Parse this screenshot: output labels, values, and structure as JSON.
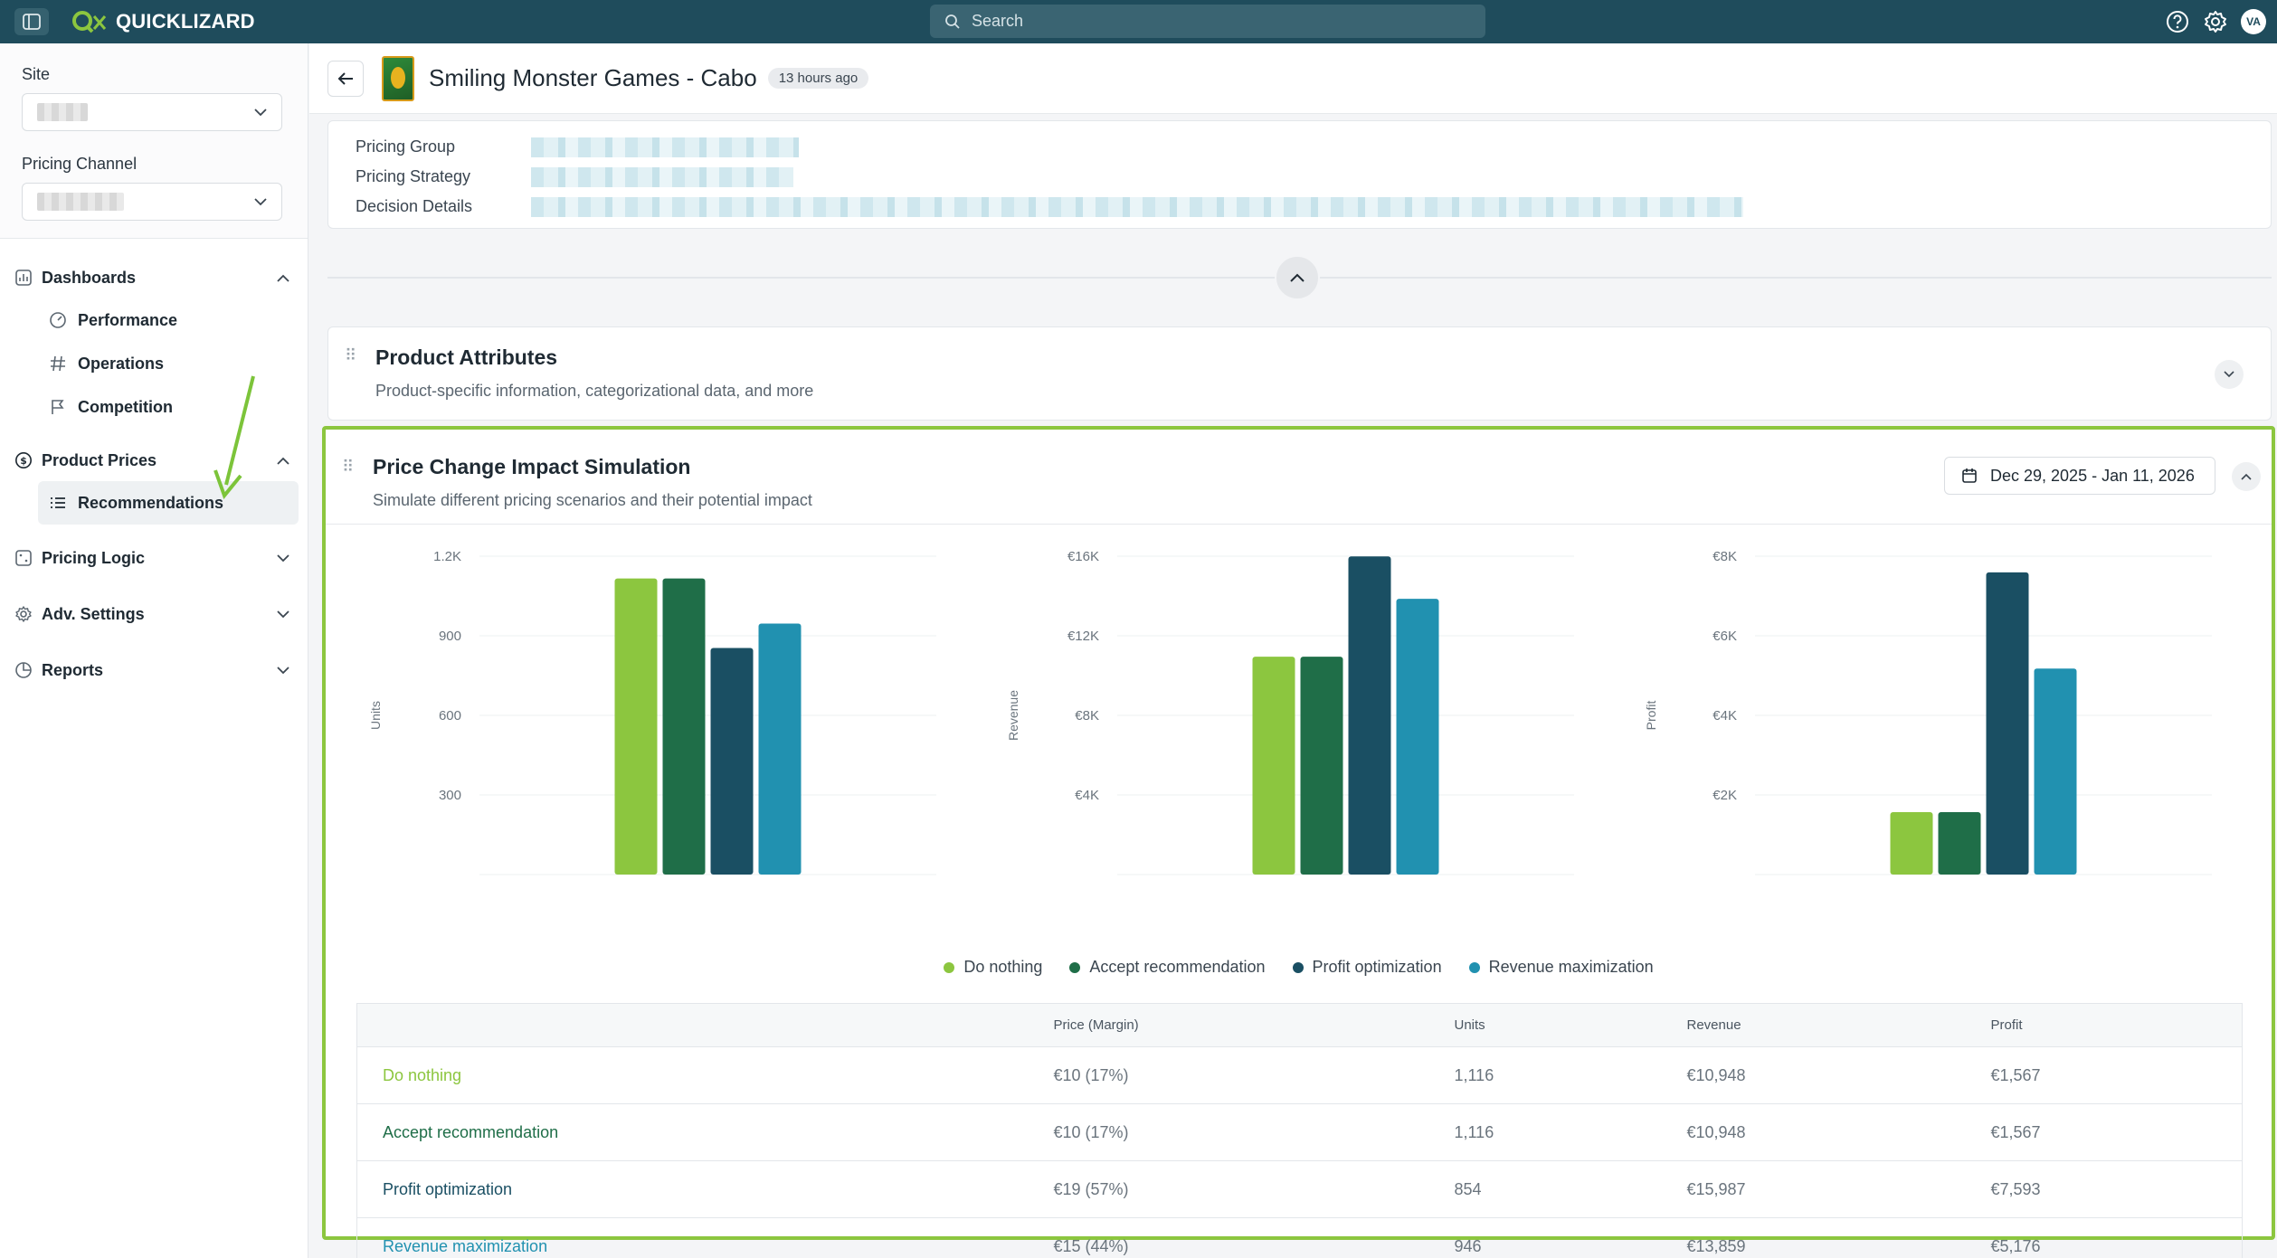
{
  "app": {
    "name": "QUICKLIZARD",
    "user_initials": "VA"
  },
  "colors": {
    "do_nothing": "#8cc63f",
    "accept": "#1f6e48",
    "profit": "#1a4f63",
    "revenue": "#2191b0",
    "highlight": "#8cc63f"
  },
  "search": {
    "placeholder": "Search"
  },
  "sidebar": {
    "site_label": "Site",
    "channel_label": "Pricing Channel",
    "groups": [
      {
        "label": "Dashboards",
        "icon": "chart-icon",
        "expanded": true,
        "items": [
          "Performance",
          "Operations",
          "Competition"
        ]
      },
      {
        "label": "Product Prices",
        "icon": "dollar-icon",
        "expanded": true,
        "items": [
          "Recommendations"
        ]
      },
      {
        "label": "Pricing Logic",
        "icon": "dice-icon",
        "expanded": false,
        "items": []
      },
      {
        "label": "Adv. Settings",
        "icon": "gear-icon",
        "expanded": false,
        "items": []
      },
      {
        "label": "Reports",
        "icon": "pie-icon",
        "expanded": false,
        "items": []
      }
    ]
  },
  "header": {
    "title": "Smiling Monster Games - Cabo",
    "updated": "13 hours ago"
  },
  "details": {
    "pricing_group_label": "Pricing Group",
    "pricing_strategy_label": "Pricing Strategy",
    "decision_details_label": "Decision Details"
  },
  "attributes_card": {
    "title": "Product Attributes",
    "subtitle": "Product-specific information, categorizational data, and more"
  },
  "simulation": {
    "title": "Price Change Impact Simulation",
    "subtitle": "Simulate different pricing scenarios and their potential impact",
    "date_range": "Dec 29, 2025 - Jan 11, 2026",
    "legend": [
      "Do nothing",
      "Accept recommendation",
      "Profit optimization",
      "Revenue maximization"
    ],
    "table": {
      "headers": [
        "",
        "Price (Margin)",
        "Units",
        "Revenue",
        "Profit"
      ],
      "rows": [
        {
          "scenario": "Do nothing",
          "price": "€10 (17%)",
          "units": "1,116",
          "revenue": "€10,948",
          "profit": "€1,567"
        },
        {
          "scenario": "Accept recommendation",
          "price": "€10 (17%)",
          "units": "1,116",
          "revenue": "€10,948",
          "profit": "€1,567"
        },
        {
          "scenario": "Profit optimization",
          "price": "€19 (57%)",
          "units": "854",
          "revenue": "€15,987",
          "profit": "€7,593"
        },
        {
          "scenario": "Revenue maximization",
          "price": "€15 (44%)",
          "units": "946",
          "revenue": "€13,859",
          "profit": "€5,176"
        }
      ]
    }
  },
  "chart_data": [
    {
      "type": "bar",
      "ylabel": "Units",
      "yticks": [
        "300",
        "600",
        "900",
        "1.2K"
      ],
      "ylim": [
        0,
        1200
      ],
      "categories": [
        "Do nothing",
        "Accept recommendation",
        "Profit optimization",
        "Revenue maximization"
      ],
      "values": [
        1116,
        1116,
        854,
        946
      ]
    },
    {
      "type": "bar",
      "ylabel": "Revenue",
      "yticks": [
        "€4K",
        "€8K",
        "€12K",
        "€16K"
      ],
      "ylim": [
        0,
        16000
      ],
      "categories": [
        "Do nothing",
        "Accept recommendation",
        "Profit optimization",
        "Revenue maximization"
      ],
      "values": [
        10948,
        10948,
        15987,
        13859
      ]
    },
    {
      "type": "bar",
      "ylabel": "Profit",
      "yticks": [
        "€2K",
        "€4K",
        "€6K",
        "€8K"
      ],
      "ylim": [
        0,
        8000
      ],
      "categories": [
        "Do nothing",
        "Accept recommendation",
        "Profit optimization",
        "Revenue maximization"
      ],
      "values": [
        1567,
        1567,
        7593,
        5176
      ]
    }
  ]
}
